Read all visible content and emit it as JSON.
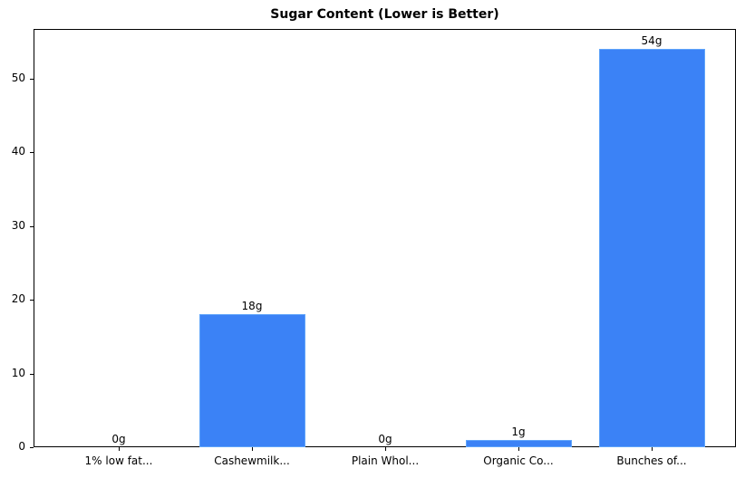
{
  "chart_data": {
    "type": "bar",
    "title": "Sugar Content (Lower is Better)",
    "xlabel": "",
    "ylabel": "",
    "categories": [
      "1% low fat...",
      "Cashewmilk...",
      "Plain Whol...",
      "Organic Co...",
      "Bunches of..."
    ],
    "values": [
      0,
      18,
      0,
      1,
      54
    ],
    "value_labels": [
      "0g",
      "18g",
      "0g",
      "1g",
      "54g"
    ],
    "ylim": [
      0,
      56.7
    ],
    "yticks": [
      0,
      10,
      20,
      30,
      40,
      50
    ],
    "grid": false,
    "legend": null,
    "bar_color": "#3b82f6"
  }
}
